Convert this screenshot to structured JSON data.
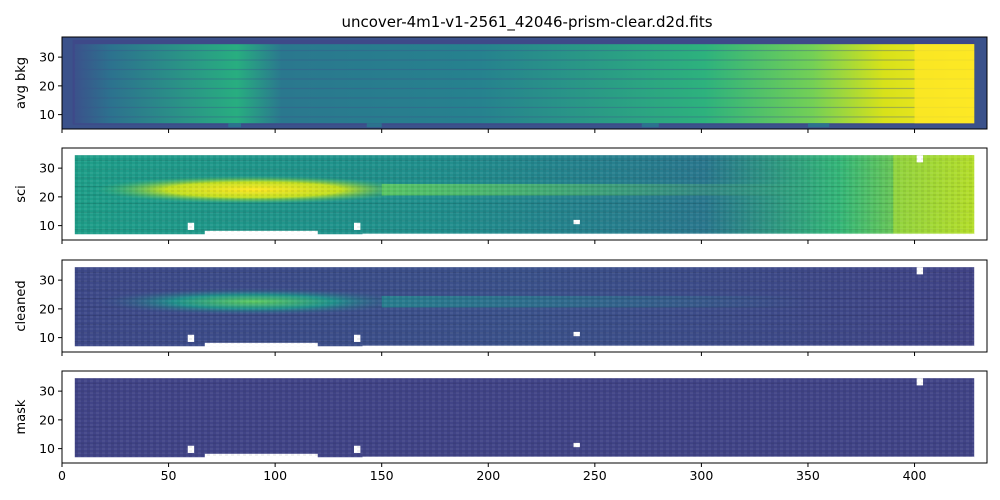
{
  "title": "uncover-4m1-v1-2561_42046-prism-clear.d2d.fits",
  "colors": {
    "viridis_low": "#440154",
    "viridis_mid": "#21918c",
    "viridis_high": "#fde725",
    "frame": "#000000",
    "background": "#ffffff"
  },
  "chart_data": [
    {
      "type": "heatmap",
      "ylabel": "avg bkg",
      "xlim": [
        0,
        434
      ],
      "ylim": [
        5,
        37
      ],
      "x_ticks": [
        0,
        50,
        100,
        150,
        200,
        250,
        300,
        350,
        400
      ],
      "y_ticks": [
        10,
        20,
        30
      ],
      "x_tick_labels_shown": false,
      "colormap": "viridis"
    },
    {
      "type": "heatmap",
      "ylabel": "sci",
      "xlim": [
        0,
        434
      ],
      "ylim": [
        5,
        37
      ],
      "x_ticks": [
        0,
        50,
        100,
        150,
        200,
        250,
        300,
        350,
        400
      ],
      "y_ticks": [
        10,
        20,
        30
      ],
      "x_tick_labels_shown": false,
      "colormap": "viridis"
    },
    {
      "type": "heatmap",
      "ylabel": "cleaned",
      "xlim": [
        0,
        434
      ],
      "ylim": [
        5,
        37
      ],
      "x_ticks": [
        0,
        50,
        100,
        150,
        200,
        250,
        300,
        350,
        400
      ],
      "y_ticks": [
        10,
        20,
        30
      ],
      "x_tick_labels_shown": false,
      "colormap": "viridis"
    },
    {
      "type": "heatmap",
      "ylabel": "mask",
      "xlim": [
        0,
        434
      ],
      "ylim": [
        5,
        37
      ],
      "x_ticks": [
        0,
        50,
        100,
        150,
        200,
        250,
        300,
        350,
        400
      ],
      "y_ticks": [
        10,
        20,
        30
      ],
      "x_tick_labels_shown": true,
      "colormap": "viridis"
    }
  ]
}
